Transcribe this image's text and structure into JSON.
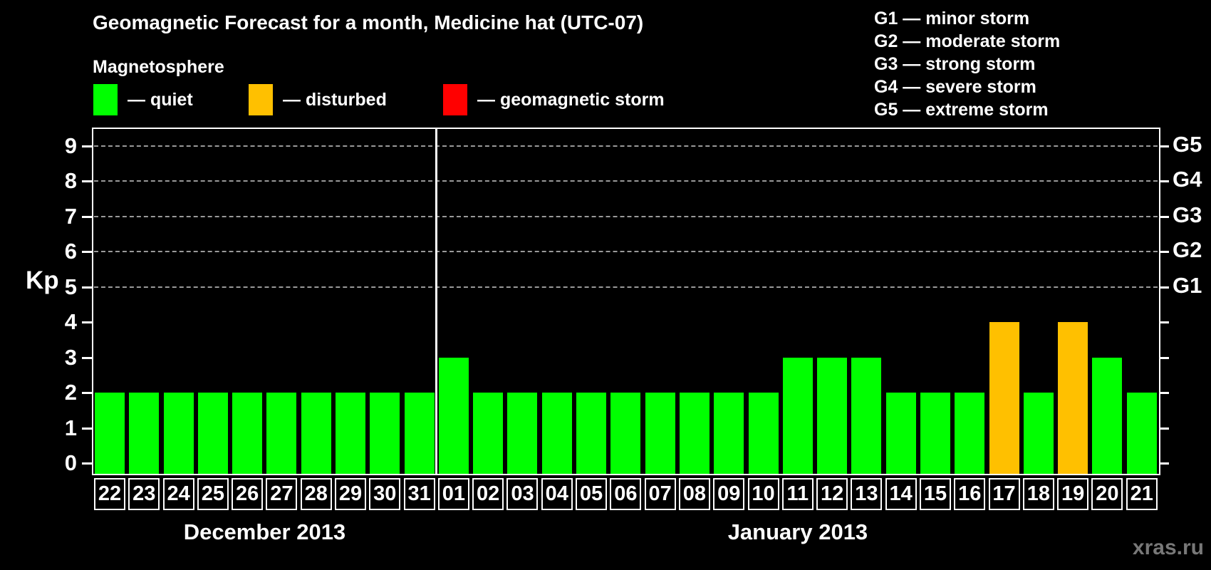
{
  "title": "Geomagnetic Forecast for a month, Medicine hat (UTC-07)",
  "legend": {
    "heading": "Magnetosphere",
    "items": [
      {
        "name": "quiet",
        "label": "— quiet",
        "color": "#00ff00"
      },
      {
        "name": "disturbed",
        "label": "— disturbed",
        "color": "#ffc000"
      },
      {
        "name": "storm",
        "label": "— geomagnetic storm",
        "color": "#ff0000"
      }
    ]
  },
  "storm_scale_legend": [
    "G1 — minor storm",
    "G2 — moderate storm",
    "G3 — strong storm",
    "G4 — severe storm",
    "G5 — extreme storm"
  ],
  "watermark": "xras.ru",
  "chart_data": {
    "type": "bar",
    "title": "Geomagnetic Forecast for a month, Medicine hat (UTC-07)",
    "ylabel": "Kp",
    "ylim": [
      0,
      9
    ],
    "y_ticks": [
      0,
      1,
      2,
      3,
      4,
      5,
      6,
      7,
      8,
      9
    ],
    "grid": "horizontal dashed lines at Kp 5 through 9",
    "legend_position": "top",
    "right_axis": [
      {
        "kp": 5,
        "label": "G1"
      },
      {
        "kp": 6,
        "label": "G2"
      },
      {
        "kp": 7,
        "label": "G3"
      },
      {
        "kp": 8,
        "label": "G4"
      },
      {
        "kp": 9,
        "label": "G5"
      }
    ],
    "color_map": {
      "quiet": "#00ff00",
      "disturbed": "#ffc000",
      "storm": "#ff0000"
    },
    "months": [
      {
        "label": "December 2013",
        "days": [
          "22",
          "23",
          "24",
          "25",
          "26",
          "27",
          "28",
          "29",
          "30",
          "31"
        ],
        "kp": [
          2,
          2,
          2,
          2,
          2,
          2,
          2,
          2,
          2,
          2
        ],
        "status": [
          "quiet",
          "quiet",
          "quiet",
          "quiet",
          "quiet",
          "quiet",
          "quiet",
          "quiet",
          "quiet",
          "quiet"
        ]
      },
      {
        "label": "January 2013",
        "days": [
          "01",
          "02",
          "03",
          "04",
          "05",
          "06",
          "07",
          "08",
          "09",
          "10",
          "11",
          "12",
          "13",
          "14",
          "15",
          "16",
          "17",
          "18",
          "19",
          "20",
          "21"
        ],
        "kp": [
          3,
          2,
          2,
          2,
          2,
          2,
          2,
          2,
          2,
          2,
          3,
          3,
          3,
          2,
          2,
          2,
          4,
          2,
          4,
          3,
          2
        ],
        "status": [
          "quiet",
          "quiet",
          "quiet",
          "quiet",
          "quiet",
          "quiet",
          "quiet",
          "quiet",
          "quiet",
          "quiet",
          "quiet",
          "quiet",
          "quiet",
          "quiet",
          "quiet",
          "quiet",
          "disturbed",
          "quiet",
          "disturbed",
          "quiet",
          "quiet"
        ]
      }
    ]
  }
}
